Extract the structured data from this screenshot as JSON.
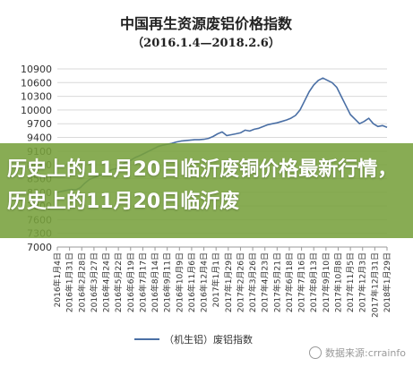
{
  "chart_data": {
    "type": "line",
    "title": "中国再生资源废铝价格指数",
    "subtitle": "（2016.1.4—2018.2.6）",
    "xlabel": "",
    "ylabel": "",
    "ylim": [
      7000,
      10900
    ],
    "yticks": [
      10900,
      10600,
      10300,
      10000,
      9700,
      9400,
      9100,
      8800,
      8500,
      8200,
      7900,
      7600,
      7300,
      7000
    ],
    "grid": "horizontal",
    "legend": "bottom",
    "series": [
      {
        "name": "（机生铝）废铝指数",
        "color": "#4a6fa5",
        "values": [
          8200,
          8220,
          8240,
          8260,
          8250,
          8300,
          8400,
          8480,
          8520,
          8560,
          8600,
          8650,
          8700,
          8720,
          8800,
          8860,
          8900,
          8960,
          9000,
          9050,
          9100,
          9150,
          9200,
          9230,
          9250,
          9270,
          9300,
          9320,
          9330,
          9340,
          9350,
          9350,
          9360,
          9380,
          9420,
          9480,
          9520,
          9440,
          9460,
          9480,
          9500,
          9560,
          9540,
          9580,
          9600,
          9640,
          9680,
          9700,
          9720,
          9750,
          9780,
          9820,
          9880,
          10000,
          10200,
          10400,
          10550,
          10650,
          10700,
          10650,
          10600,
          10500,
          10300,
          10100,
          9900,
          9800,
          9700,
          9750,
          9820,
          9700,
          9640,
          9660,
          9620
        ]
      }
    ],
    "x_tick_labels": [
      "2016年1月4日",
      "2016年1月31日",
      "2016年2月28日",
      "2016年3月27日",
      "2016年4月24日",
      "2016年5月22日",
      "2016年6月19日",
      "2016年7月17日",
      "2016年8月14日",
      "2016年9月11日",
      "2016年10月9日",
      "2016年11月6日",
      "2016年12月4日",
      "2017年1月1日",
      "2017年1月29日",
      "2017年2月26日",
      "2017年3月26日",
      "2017年4月23日",
      "2017年5月21日",
      "2017年6月18日",
      "2017年7月16日",
      "2017年8月13日",
      "2017年9月10日",
      "2017年10月8日",
      "2017年11月5日",
      "2017年12月3日",
      "2017年12月31日",
      "2018年1月29日"
    ]
  },
  "overlay": {
    "headline": "历史上的11月20日临沂废铜价格最新行情，历史上的11月20日临沂废"
  },
  "watermark": {
    "text": "数据来源:crrainfo"
  }
}
